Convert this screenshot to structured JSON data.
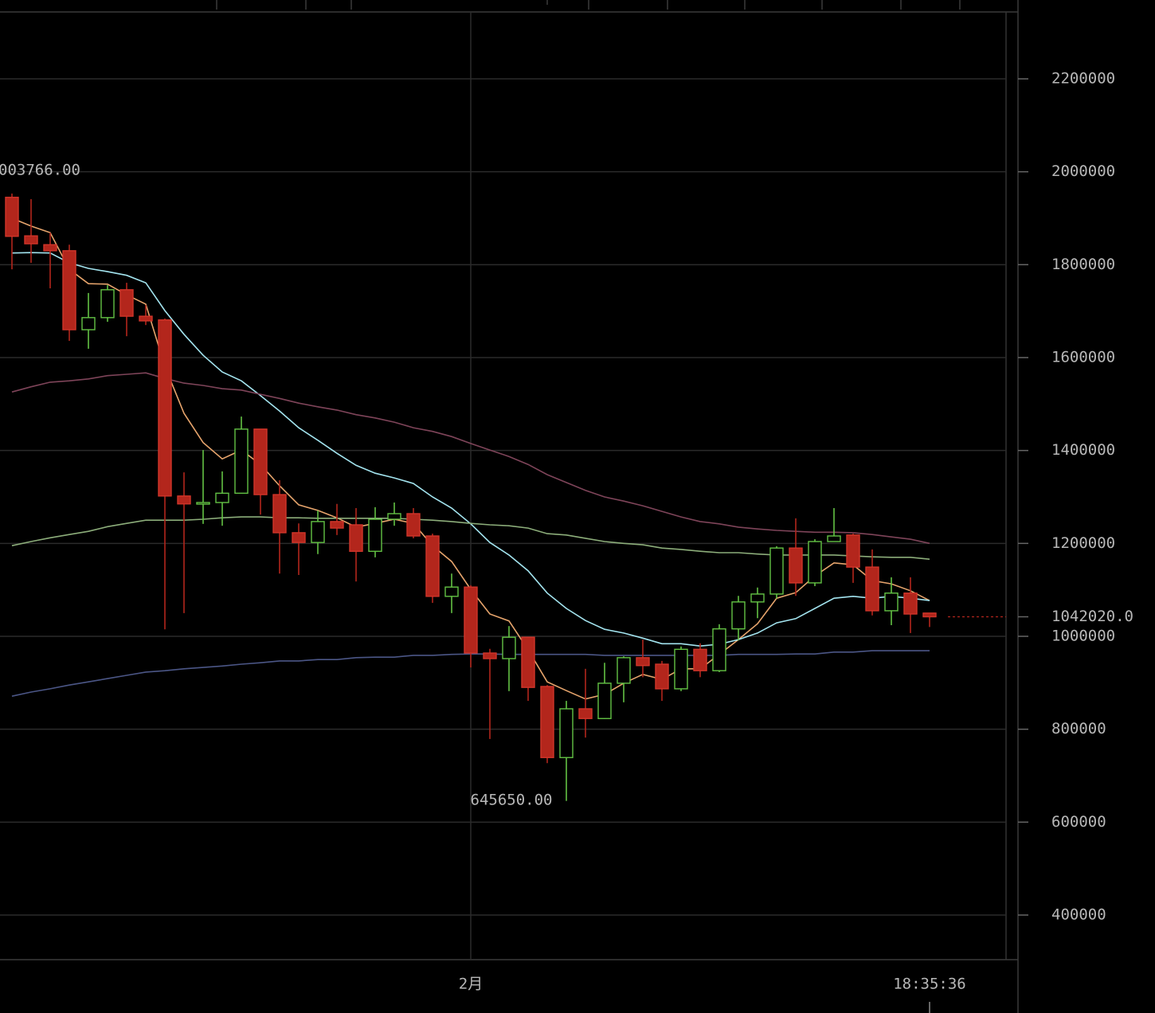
{
  "chart_data": {
    "type": "candlestick",
    "categories": [
      null,
      null,
      null,
      null,
      null,
      null,
      null,
      null,
      null,
      null,
      null,
      null,
      null,
      null,
      null,
      null,
      null,
      null,
      null,
      null,
      null,
      null,
      null,
      null,
      "2月",
      null,
      null,
      null,
      null,
      null,
      null,
      null,
      null,
      null,
      null,
      null,
      null,
      null,
      null,
      null,
      null,
      null,
      null,
      null,
      null,
      null,
      null,
      null,
      null
    ],
    "time_label": "18:35:36",
    "open": [
      1945000,
      1862000,
      1843000,
      1830000,
      1660000,
      1686000,
      1746000,
      1689000,
      1681000,
      1302000,
      1285000,
      1288000,
      1308000,
      1446000,
      1305000,
      1223000,
      1202000,
      1247000,
      1240000,
      1183000,
      1252000,
      1264000,
      1216000,
      1086000,
      1106000,
      964000,
      952000,
      998000,
      892000,
      739000,
      844000,
      823000,
      899000,
      954000,
      940000,
      887000,
      972000,
      926000,
      1016000,
      1074000,
      1091000,
      1190000,
      1115000,
      1204000,
      1218000,
      1149000,
      1055000,
      1093000,
      1050000
    ],
    "high": [
      1953000,
      1941000,
      1869000,
      1843000,
      1739000,
      1756000,
      1761000,
      1713000,
      1684000,
      1353000,
      1401000,
      1355000,
      1473000,
      1446000,
      1336000,
      1243000,
      1271000,
      1285000,
      1276000,
      1278000,
      1288000,
      1276000,
      1221000,
      1135000,
      1110000,
      973000,
      1022000,
      998000,
      895000,
      861000,
      930000,
      943000,
      957000,
      993000,
      947000,
      978000,
      985000,
      1026000,
      1087000,
      1105000,
      1194000,
      1254000,
      1209000,
      1276000,
      1221000,
      1187000,
      1127000,
      1127000,
      1050000
    ],
    "low": [
      1790000,
      1804000,
      1749000,
      1636000,
      1619000,
      1677000,
      1646000,
      1670000,
      1015000,
      1050000,
      1242000,
      1238000,
      1307000,
      1262000,
      1135000,
      1132000,
      1177000,
      1218000,
      1118000,
      1170000,
      1238000,
      1211000,
      1072000,
      1050000,
      933000,
      779000,
      882000,
      861000,
      727000,
      645650,
      782000,
      822000,
      858000,
      912000,
      861000,
      882000,
      912000,
      923000,
      991000,
      1039000,
      1081000,
      1087000,
      1108000,
      1204000,
      1115000,
      1045000,
      1024000,
      1007000,
      1020000
    ],
    "close": [
      1861000,
      1845000,
      1830000,
      1660000,
      1686000,
      1746000,
      1689000,
      1679000,
      1302000,
      1285000,
      1288000,
      1308000,
      1446000,
      1305000,
      1223000,
      1202000,
      1247000,
      1233000,
      1183000,
      1252000,
      1264000,
      1216000,
      1086000,
      1106000,
      964000,
      952000,
      998000,
      890000,
      739000,
      844000,
      823000,
      899000,
      954000,
      937000,
      887000,
      972000,
      926000,
      1016000,
      1074000,
      1091000,
      1190000,
      1115000,
      1204000,
      1216000,
      1149000,
      1055000,
      1093000,
      1048000,
      1042020
    ],
    "up_color": "#63c244",
    "down_color": "#b3261c",
    "lines": [
      {
        "color": "#e6a46c",
        "values": [
          1900000,
          1883000,
          1869000,
          1790000,
          1759000,
          1758000,
          1735000,
          1715000,
          1581000,
          1480000,
          1417000,
          1382000,
          1401000,
          1370000,
          1324000,
          1283000,
          1271000,
          1255000,
          1235000,
          1243000,
          1252000,
          1243000,
          1195000,
          1161000,
          1101000,
          1048000,
          1033000,
          971000,
          902000,
          883000,
          865000,
          875000,
          899000,
          918000,
          907000,
          930000,
          930000,
          961000,
          993000,
          1027000,
          1082000,
          1094000,
          1130000,
          1158000,
          1154000,
          1120000,
          1113000,
          1098000,
          1077000
        ]
      },
      {
        "color": "#a3e4ef",
        "values": [
          1825000,
          1826000,
          1825000,
          1804000,
          1792000,
          1785000,
          1777000,
          1761000,
          1701000,
          1650000,
          1605000,
          1569000,
          1550000,
          1518000,
          1485000,
          1449000,
          1422000,
          1394000,
          1368000,
          1351000,
          1341000,
          1329000,
          1300000,
          1276000,
          1242000,
          1202000,
          1175000,
          1141000,
          1093000,
          1060000,
          1034000,
          1015000,
          1007000,
          996000,
          984000,
          984000,
          979000,
          983000,
          993000,
          1007000,
          1029000,
          1038000,
          1060000,
          1082000,
          1086000,
          1082000,
          1086000,
          1082000,
          1077000
        ]
      },
      {
        "color": "#8cad7a",
        "values": [
          1195000,
          1204000,
          1212000,
          1219000,
          1226000,
          1236000,
          1243000,
          1250000,
          1250000,
          1250000,
          1252000,
          1255000,
          1257000,
          1257000,
          1255000,
          1255000,
          1254000,
          1254000,
          1254000,
          1254000,
          1254000,
          1252000,
          1250000,
          1247000,
          1243000,
          1240000,
          1238000,
          1233000,
          1221000,
          1218000,
          1211000,
          1204000,
          1200000,
          1197000,
          1190000,
          1187000,
          1183000,
          1180000,
          1180000,
          1177000,
          1175000,
          1175000,
          1175000,
          1175000,
          1173000,
          1171000,
          1170000,
          1170000,
          1166000
        ]
      },
      {
        "color": "#7e4459",
        "values": [
          1526000,
          1537000,
          1547000,
          1550000,
          1554000,
          1561000,
          1564000,
          1567000,
          1555000,
          1545000,
          1540000,
          1533000,
          1530000,
          1521000,
          1512000,
          1502000,
          1494000,
          1487000,
          1477000,
          1470000,
          1461000,
          1449000,
          1441000,
          1430000,
          1415000,
          1401000,
          1387000,
          1370000,
          1348000,
          1331000,
          1314000,
          1300000,
          1291000,
          1281000,
          1269000,
          1257000,
          1247000,
          1242000,
          1235000,
          1231000,
          1228000,
          1226000,
          1224000,
          1224000,
          1223000,
          1219000,
          1214000,
          1209000,
          1200000
        ]
      },
      {
        "color": "#4b5686",
        "values": [
          871000,
          880000,
          887000,
          895000,
          902000,
          909000,
          916000,
          923000,
          926000,
          930000,
          933000,
          936000,
          940000,
          943000,
          947000,
          947000,
          950000,
          950000,
          954000,
          955000,
          955000,
          959000,
          959000,
          961000,
          962000,
          962000,
          961000,
          961000,
          961000,
          961000,
          961000,
          959000,
          959000,
          959000,
          959000,
          959000,
          959000,
          959000,
          961000,
          961000,
          961000,
          962000,
          962000,
          966000,
          966000,
          969000,
          969000,
          969000,
          969000
        ]
      }
    ],
    "price_line": {
      "value": 1042020,
      "label": "1042020.0",
      "color": "#b3261c"
    },
    "annotations": [
      "003766.00",
      "645650.00"
    ],
    "ylim": [
      304000,
      2369700
    ],
    "yticks": [
      400000,
      600000,
      800000,
      1000000,
      1200000,
      1400000,
      1600000,
      1800000,
      2000000,
      2200000
    ],
    "grid": true
  }
}
